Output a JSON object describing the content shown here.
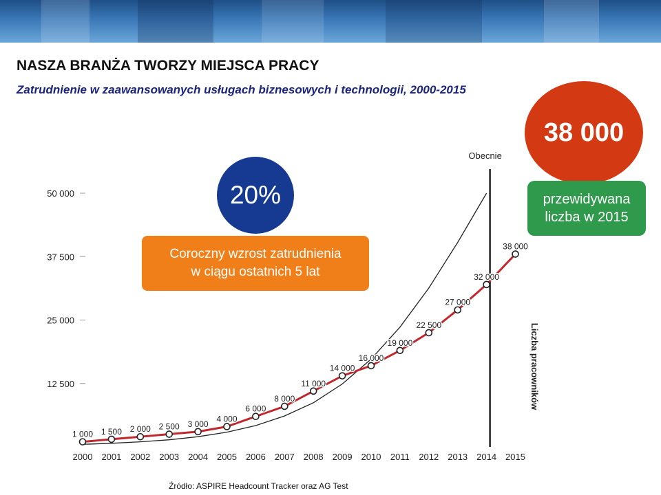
{
  "header": {
    "title": "NASZA BRANŻA TWORZY MIEJSCA PRACY",
    "subtitle": "Zatrudnienie w zaawansowanych usługach biznesowych i technologii, 2000-2015"
  },
  "callouts": {
    "forecast_value": "38 000",
    "forecast_caption_1": "przewidywana",
    "forecast_caption_2": "liczba w 2015",
    "growth_rate": "20%",
    "growth_caption_1": "Coroczny wzrost zatrudnienia",
    "growth_caption_2": "w ciągu ostatnich 5 lat",
    "current_marker": "Obecnie"
  },
  "colors": {
    "forecast_circle": "#d33a14",
    "growth_circle": "#163a92",
    "growth_box": "#f07f1a",
    "forecast_box": "#2f9a4b",
    "series_line": "#c0282d"
  },
  "source": "Źródło:  ASPIRE Headcount Tracker oraz AG Test",
  "chart_data": {
    "type": "line",
    "title": "Zatrudnienie w zaawansowanych usługach biznesowych i technologii, 2000-2015",
    "xlabel": "",
    "ylabel": "Liczba pracowników",
    "ylim": [
      0,
      50000
    ],
    "yticks": [
      12500,
      25000,
      37500,
      50000
    ],
    "ytick_labels": [
      "12 500",
      "25 000",
      "37 500",
      "50 000"
    ],
    "categories": [
      "2000",
      "2001",
      "2002",
      "2003",
      "2004",
      "2005",
      "2006",
      "2007",
      "2008",
      "2009",
      "2010",
      "2011",
      "2012",
      "2013",
      "2014",
      "2015"
    ],
    "series": [
      {
        "values": [
          1000,
          1500,
          2000,
          2500,
          3000,
          4000,
          6000,
          8000,
          11000,
          14000,
          16000,
          19000,
          22500,
          27000,
          32000,
          38000
        ],
        "labels": [
          "1 000",
          "1 500",
          "2 000",
          "2 500",
          "3 000",
          "4 000",
          "6 000",
          "8 000",
          "11 000",
          "14 000",
          "16 000",
          "19 000",
          "22 500",
          "27 000",
          "32 000",
          "38 000"
        ]
      }
    ],
    "trend": {
      "values": [
        500,
        700,
        1000,
        1400,
        2000,
        2900,
        4200,
        6100,
        8700,
        12400,
        17300,
        23600,
        31300,
        40300,
        50000
      ]
    },
    "marker_year": "2014",
    "grid": false,
    "legend": "none"
  }
}
